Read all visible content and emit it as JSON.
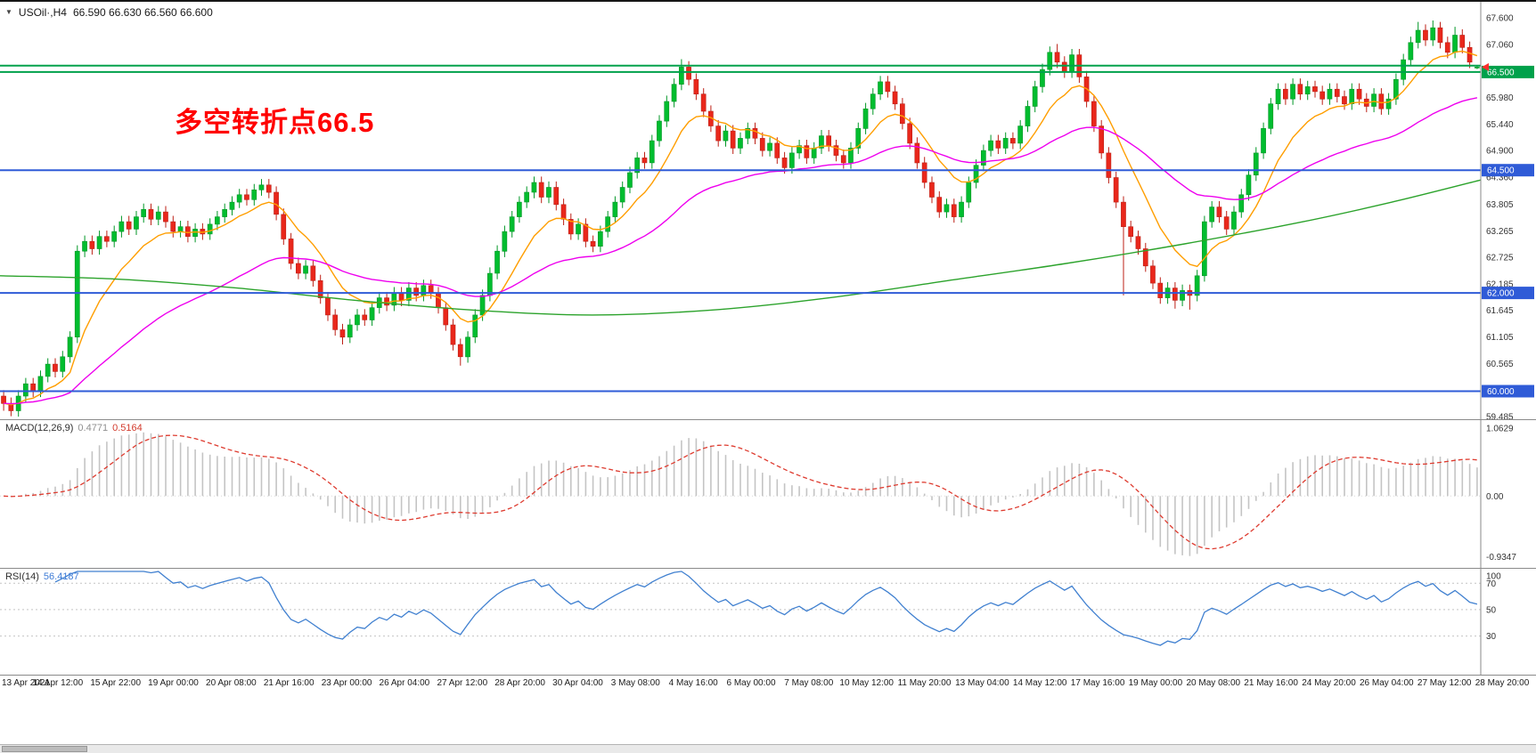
{
  "header": {
    "dropdown_glyph": "▼",
    "symbol": "USOil·,H4",
    "ohlc": "66.590 66.630 66.560 66.600",
    "open": "66.590",
    "high": "66.630",
    "low": "66.560",
    "close": "66.600"
  },
  "annotation": {
    "text": "多空转折点66.5",
    "color": "#FF0000"
  },
  "macd": {
    "label": "MACD(12,26,9)",
    "value_main": "0.4771",
    "value_signal": "0.5164",
    "ticks": [
      "1.0629",
      "0.00",
      "-0.9347"
    ],
    "range": [
      -1.12,
      1.17
    ]
  },
  "rsi": {
    "label": "RSI(14)",
    "value": "56.4187",
    "ticks": [
      "100",
      "70",
      "50",
      "30"
    ],
    "levels": [
      70,
      50,
      30
    ],
    "range": [
      0,
      81
    ]
  },
  "main_axis": {
    "ticks": [
      "67.600",
      "67.060",
      "66.520",
      "65.980",
      "65.440",
      "64.900",
      "64.360",
      "63.805",
      "63.265",
      "62.725",
      "62.185",
      "61.645",
      "61.105",
      "60.565",
      "60.025",
      "59.485"
    ]
  },
  "price_marker": {
    "price": 66.6,
    "color": "#FF2D2D"
  },
  "time_axis": {
    "labels": [
      "13 Apr 2021",
      "14 Apr 12:00",
      "15 Apr 22:00",
      "19 Apr 00:00",
      "20 Apr 08:00",
      "21 Apr 16:00",
      "23 Apr 00:00",
      "26 Apr 04:00",
      "27 Apr 12:00",
      "28 Apr 20:00",
      "30 Apr 04:00",
      "3 May 08:00",
      "4 May 16:00",
      "6 May 00:00",
      "7 May 08:00",
      "10 May 12:00",
      "11 May 20:00",
      "13 May 04:00",
      "14 May 12:00",
      "17 May 16:00",
      "19 May 00:00",
      "20 May 08:00",
      "21 May 16:00",
      "24 May 20:00",
      "26 May 04:00",
      "27 May 12:00",
      "28 May 20:00"
    ]
  },
  "chart_data": {
    "type": "candlestick",
    "symbol": "USOil",
    "timeframe": "H4",
    "title": "USOil,H4",
    "last_ohlc": {
      "open": 66.59,
      "high": 66.63,
      "low": 66.56,
      "close": 66.6
    },
    "price_range": [
      59.41,
      67.93
    ],
    "x_start_label": "13 Apr 2021",
    "x_end_label": "28 May 20:00",
    "indicators": [
      {
        "name": "MACD",
        "params": [
          12,
          26,
          9
        ],
        "values": [
          0.4771,
          0.5164
        ]
      },
      {
        "name": "RSI",
        "params": [
          14
        ],
        "value": 56.4187
      }
    ],
    "hlines": [
      {
        "price": 66.63,
        "color": "#00A14B",
        "width": 2,
        "badge": null
      },
      {
        "price": 66.5,
        "color": "#00A14B",
        "width": 2,
        "badge": "66.500"
      },
      {
        "price": 64.5,
        "color": "#2F5BD7",
        "width": 2,
        "badge": "64.500"
      },
      {
        "price": 62.0,
        "color": "#2F5BD7",
        "width": 2,
        "badge": "62.000"
      },
      {
        "price": 60.0,
        "color": "#2F5BD7",
        "width": 2,
        "badge": "60.000"
      }
    ],
    "moving_averages": {
      "fast": {
        "period": 10,
        "color": "#FF9E00"
      },
      "mid": {
        "period": 40,
        "color": "#EE00EE"
      },
      "slow": {
        "color": "#2CA32C",
        "points": [
          [
            0,
            62.35
          ],
          [
            0.08,
            62.28
          ],
          [
            0.16,
            62.1
          ],
          [
            0.24,
            61.85
          ],
          [
            0.32,
            61.65
          ],
          [
            0.4,
            61.55
          ],
          [
            0.48,
            61.65
          ],
          [
            0.56,
            61.9
          ],
          [
            0.64,
            62.25
          ],
          [
            0.72,
            62.6
          ],
          [
            0.8,
            63.0
          ],
          [
            0.88,
            63.45
          ],
          [
            0.94,
            63.85
          ],
          [
            1,
            64.3
          ]
        ]
      }
    },
    "colors": {
      "up": "#00BD2F",
      "up_stroke": "#009625",
      "down": "#E9271B",
      "down_stroke": "#BC1F15",
      "macd_hist": "#C4C4C4",
      "macd_signal": "#DE3B2F",
      "rsi_line": "#4080D0",
      "level_line": "#C4C4C4",
      "axis_text": "#333333",
      "border": "#8A8A8A"
    },
    "candles": [
      [
        59.9,
        60.02,
        59.6,
        59.75
      ],
      [
        59.75,
        59.87,
        59.49,
        59.6
      ],
      [
        59.6,
        60.02,
        59.48,
        59.9
      ],
      [
        59.9,
        60.27,
        59.78,
        60.15
      ],
      [
        60.15,
        60.27,
        59.88,
        60.0
      ],
      [
        60.0,
        60.42,
        59.88,
        60.3
      ],
      [
        60.3,
        60.67,
        60.18,
        60.55
      ],
      [
        60.55,
        60.67,
        60.28,
        60.4
      ],
      [
        60.4,
        60.82,
        60.28,
        60.7
      ],
      [
        60.7,
        61.22,
        60.58,
        61.1
      ],
      [
        61.1,
        62.97,
        60.98,
        62.85
      ],
      [
        62.85,
        63.17,
        62.73,
        63.05
      ],
      [
        63.05,
        63.17,
        62.78,
        62.9
      ],
      [
        62.9,
        63.27,
        62.78,
        63.15
      ],
      [
        63.15,
        63.27,
        62.93,
        63.05
      ],
      [
        63.05,
        63.37,
        62.93,
        63.25
      ],
      [
        63.25,
        63.57,
        63.13,
        63.45
      ],
      [
        63.45,
        63.57,
        63.18,
        63.3
      ],
      [
        63.3,
        63.67,
        63.18,
        63.55
      ],
      [
        63.55,
        63.82,
        63.43,
        63.7
      ],
      [
        63.7,
        63.82,
        63.38,
        63.5
      ],
      [
        63.5,
        63.77,
        63.38,
        63.65
      ],
      [
        63.65,
        63.77,
        63.33,
        63.45
      ],
      [
        63.45,
        63.57,
        63.13,
        63.25
      ],
      [
        63.25,
        63.47,
        63.13,
        63.35
      ],
      [
        63.35,
        63.47,
        63.03,
        63.15
      ],
      [
        63.15,
        63.42,
        63.03,
        63.3
      ],
      [
        63.3,
        63.42,
        63.08,
        63.2
      ],
      [
        63.2,
        63.52,
        63.08,
        63.4
      ],
      [
        63.4,
        63.67,
        63.28,
        63.55
      ],
      [
        63.55,
        63.82,
        63.43,
        63.7
      ],
      [
        63.7,
        63.97,
        63.58,
        63.85
      ],
      [
        63.85,
        64.12,
        63.73,
        64.0
      ],
      [
        64.0,
        64.12,
        63.78,
        63.9
      ],
      [
        63.9,
        64.22,
        63.78,
        64.1
      ],
      [
        64.1,
        64.32,
        63.98,
        64.2
      ],
      [
        64.2,
        64.32,
        63.93,
        64.05
      ],
      [
        64.05,
        64.17,
        63.48,
        63.6
      ],
      [
        63.6,
        63.72,
        62.98,
        63.1
      ],
      [
        63.1,
        63.22,
        62.48,
        62.6
      ],
      [
        62.6,
        62.72,
        62.28,
        62.4
      ],
      [
        62.4,
        62.67,
        62.28,
        62.55
      ],
      [
        62.55,
        62.67,
        62.13,
        62.25
      ],
      [
        62.25,
        62.37,
        61.78,
        61.9
      ],
      [
        61.9,
        62.02,
        61.43,
        61.55
      ],
      [
        61.55,
        61.67,
        61.13,
        61.25
      ],
      [
        61.25,
        61.37,
        60.95,
        61.1
      ],
      [
        61.1,
        61.47,
        60.98,
        61.35
      ],
      [
        61.35,
        61.67,
        61.23,
        61.55
      ],
      [
        61.55,
        61.67,
        61.33,
        61.45
      ],
      [
        61.45,
        61.82,
        61.33,
        61.7
      ],
      [
        61.7,
        62.02,
        61.58,
        61.9
      ],
      [
        61.9,
        62.02,
        61.63,
        61.75
      ],
      [
        61.75,
        62.12,
        61.63,
        62.0
      ],
      [
        62.0,
        62.12,
        61.73,
        61.85
      ],
      [
        61.85,
        62.22,
        61.73,
        62.1
      ],
      [
        62.1,
        62.22,
        61.83,
        61.95
      ],
      [
        61.95,
        62.27,
        61.83,
        62.15
      ],
      [
        62.15,
        62.27,
        61.88,
        62.0
      ],
      [
        62.0,
        62.12,
        61.58,
        61.7
      ],
      [
        61.7,
        61.82,
        61.23,
        61.35
      ],
      [
        61.35,
        61.47,
        60.83,
        60.95
      ],
      [
        60.95,
        61.07,
        60.52,
        60.7
      ],
      [
        60.7,
        61.22,
        60.58,
        61.1
      ],
      [
        61.1,
        61.67,
        60.98,
        61.55
      ],
      [
        61.55,
        62.07,
        61.43,
        61.95
      ],
      [
        61.95,
        62.52,
        61.83,
        62.4
      ],
      [
        62.4,
        62.97,
        62.28,
        62.85
      ],
      [
        62.85,
        63.37,
        62.73,
        63.25
      ],
      [
        63.25,
        63.67,
        63.13,
        63.55
      ],
      [
        63.55,
        63.97,
        63.43,
        63.85
      ],
      [
        63.85,
        64.17,
        63.73,
        64.05
      ],
      [
        64.05,
        64.37,
        63.93,
        64.25
      ],
      [
        64.25,
        64.37,
        63.83,
        63.95
      ],
      [
        63.95,
        64.27,
        63.83,
        64.15
      ],
      [
        64.15,
        64.27,
        63.68,
        63.8
      ],
      [
        63.8,
        63.92,
        63.38,
        63.5
      ],
      [
        63.5,
        63.62,
        63.08,
        63.2
      ],
      [
        63.2,
        63.52,
        63.08,
        63.4
      ],
      [
        63.4,
        63.52,
        62.93,
        63.05
      ],
      [
        63.05,
        63.17,
        62.83,
        62.95
      ],
      [
        62.95,
        63.37,
        62.83,
        63.25
      ],
      [
        63.25,
        63.67,
        63.13,
        63.55
      ],
      [
        63.55,
        63.97,
        63.43,
        63.85
      ],
      [
        63.85,
        64.27,
        63.73,
        64.15
      ],
      [
        64.15,
        64.57,
        64.03,
        64.45
      ],
      [
        64.45,
        64.87,
        64.33,
        64.75
      ],
      [
        64.75,
        64.87,
        64.53,
        64.65
      ],
      [
        64.65,
        65.22,
        64.53,
        65.1
      ],
      [
        65.1,
        65.62,
        64.98,
        65.5
      ],
      [
        65.5,
        66.02,
        65.38,
        65.9
      ],
      [
        65.9,
        66.37,
        65.78,
        66.25
      ],
      [
        66.25,
        66.76,
        66.13,
        66.6
      ],
      [
        66.6,
        66.72,
        66.23,
        66.35
      ],
      [
        66.35,
        66.47,
        65.93,
        66.05
      ],
      [
        66.05,
        66.17,
        65.58,
        65.7
      ],
      [
        65.7,
        65.82,
        65.28,
        65.4
      ],
      [
        65.4,
        65.52,
        64.98,
        65.1
      ],
      [
        65.1,
        65.42,
        64.98,
        65.3
      ],
      [
        65.3,
        65.42,
        64.83,
        64.95
      ],
      [
        64.95,
        65.27,
        64.83,
        65.15
      ],
      [
        65.15,
        65.47,
        65.03,
        65.35
      ],
      [
        65.35,
        65.47,
        65.03,
        65.15
      ],
      [
        65.15,
        65.27,
        64.78,
        64.9
      ],
      [
        64.9,
        65.17,
        64.78,
        65.05
      ],
      [
        65.05,
        65.17,
        64.63,
        64.75
      ],
      [
        64.75,
        64.87,
        64.43,
        64.55
      ],
      [
        64.55,
        64.97,
        64.43,
        64.85
      ],
      [
        64.85,
        65.12,
        64.73,
        65.0
      ],
      [
        65.0,
        65.12,
        64.63,
        64.75
      ],
      [
        64.75,
        65.07,
        64.63,
        64.95
      ],
      [
        64.95,
        65.32,
        64.83,
        65.2
      ],
      [
        65.2,
        65.32,
        64.88,
        65.0
      ],
      [
        65.0,
        65.12,
        64.68,
        64.8
      ],
      [
        64.8,
        64.92,
        64.53,
        64.65
      ],
      [
        64.65,
        65.07,
        64.53,
        64.95
      ],
      [
        64.95,
        65.47,
        64.83,
        65.35
      ],
      [
        65.35,
        65.87,
        65.23,
        65.75
      ],
      [
        65.75,
        66.17,
        65.63,
        66.05
      ],
      [
        66.05,
        66.42,
        65.93,
        66.3
      ],
      [
        66.3,
        66.42,
        65.98,
        66.1
      ],
      [
        66.1,
        66.22,
        65.73,
        65.85
      ],
      [
        65.85,
        65.97,
        65.33,
        65.45
      ],
      [
        65.45,
        65.57,
        64.93,
        65.05
      ],
      [
        65.05,
        65.17,
        64.53,
        64.65
      ],
      [
        64.65,
        64.77,
        64.13,
        64.25
      ],
      [
        64.25,
        64.37,
        63.83,
        63.95
      ],
      [
        63.95,
        64.07,
        63.53,
        63.65
      ],
      [
        63.65,
        63.92,
        63.53,
        63.8
      ],
      [
        63.8,
        63.92,
        63.43,
        63.55
      ],
      [
        63.55,
        63.97,
        63.43,
        63.85
      ],
      [
        63.85,
        64.37,
        63.73,
        64.25
      ],
      [
        64.25,
        64.72,
        64.13,
        64.6
      ],
      [
        64.6,
        65.02,
        64.48,
        64.9
      ],
      [
        64.9,
        65.22,
        64.78,
        65.1
      ],
      [
        65.1,
        65.22,
        64.83,
        64.95
      ],
      [
        64.95,
        65.27,
        64.83,
        65.15
      ],
      [
        65.15,
        65.27,
        64.93,
        65.05
      ],
      [
        65.05,
        65.52,
        64.93,
        65.4
      ],
      [
        65.4,
        65.92,
        65.28,
        65.8
      ],
      [
        65.8,
        66.32,
        65.68,
        66.2
      ],
      [
        66.2,
        66.67,
        66.08,
        66.55
      ],
      [
        66.55,
        67.02,
        66.43,
        66.9
      ],
      [
        66.9,
        67.07,
        66.58,
        66.7
      ],
      [
        66.7,
        66.82,
        66.38,
        66.5
      ],
      [
        66.5,
        66.97,
        66.38,
        66.85
      ],
      [
        66.85,
        66.97,
        66.28,
        66.4
      ],
      [
        66.4,
        66.52,
        65.78,
        65.9
      ],
      [
        65.9,
        66.02,
        65.28,
        65.4
      ],
      [
        65.4,
        65.52,
        64.73,
        64.85
      ],
      [
        64.85,
        64.97,
        64.23,
        64.35
      ],
      [
        64.35,
        64.47,
        63.73,
        63.85
      ],
      [
        63.85,
        63.97,
        61.95,
        63.35
      ],
      [
        63.35,
        63.47,
        63.03,
        63.15
      ],
      [
        63.15,
        63.27,
        62.78,
        62.9
      ],
      [
        62.9,
        63.02,
        62.43,
        62.55
      ],
      [
        62.55,
        62.67,
        62.08,
        62.2
      ],
      [
        62.2,
        62.32,
        61.78,
        61.9
      ],
      [
        61.9,
        62.22,
        61.78,
        62.1
      ],
      [
        62.1,
        62.22,
        61.68,
        61.85
      ],
      [
        61.85,
        62.17,
        61.73,
        62.05
      ],
      [
        62.05,
        62.17,
        61.66,
        61.95
      ],
      [
        61.95,
        62.47,
        61.83,
        62.35
      ],
      [
        62.35,
        63.57,
        62.23,
        63.45
      ],
      [
        63.45,
        63.87,
        63.33,
        63.75
      ],
      [
        63.75,
        63.87,
        63.43,
        63.55
      ],
      [
        63.55,
        63.67,
        63.18,
        63.3
      ],
      [
        63.3,
        63.77,
        63.18,
        63.65
      ],
      [
        63.65,
        64.12,
        63.53,
        64.0
      ],
      [
        64.0,
        64.52,
        63.88,
        64.4
      ],
      [
        64.4,
        64.97,
        64.28,
        64.85
      ],
      [
        64.85,
        65.47,
        64.73,
        65.35
      ],
      [
        65.35,
        65.97,
        65.23,
        65.85
      ],
      [
        65.85,
        66.27,
        65.73,
        66.15
      ],
      [
        66.15,
        66.27,
        65.83,
        65.95
      ],
      [
        65.95,
        66.37,
        65.83,
        66.25
      ],
      [
        66.25,
        66.37,
        65.93,
        66.05
      ],
      [
        66.05,
        66.32,
        65.93,
        66.2
      ],
      [
        66.2,
        66.32,
        65.98,
        66.1
      ],
      [
        66.1,
        66.22,
        65.83,
        65.95
      ],
      [
        65.95,
        66.27,
        65.83,
        66.15
      ],
      [
        66.15,
        66.27,
        65.88,
        66.0
      ],
      [
        66.0,
        66.12,
        65.73,
        65.85
      ],
      [
        65.85,
        66.27,
        65.73,
        66.15
      ],
      [
        66.15,
        66.27,
        65.83,
        65.95
      ],
      [
        65.95,
        66.07,
        65.68,
        65.8
      ],
      [
        65.8,
        66.17,
        65.68,
        66.05
      ],
      [
        66.05,
        66.17,
        65.63,
        65.75
      ],
      [
        65.75,
        66.07,
        65.63,
        65.95
      ],
      [
        65.95,
        66.47,
        65.83,
        66.35
      ],
      [
        66.35,
        66.87,
        66.23,
        66.75
      ],
      [
        66.75,
        67.22,
        66.63,
        67.1
      ],
      [
        67.1,
        67.52,
        66.98,
        67.35
      ],
      [
        67.35,
        67.47,
        67.03,
        67.15
      ],
      [
        67.15,
        67.55,
        67.03,
        67.4
      ],
      [
        67.4,
        67.52,
        66.98,
        67.1
      ],
      [
        67.1,
        67.22,
        66.78,
        66.9
      ],
      [
        66.9,
        67.42,
        66.78,
        67.25
      ],
      [
        67.25,
        67.37,
        66.88,
        67.0
      ],
      [
        67.0,
        67.12,
        66.58,
        66.7
      ],
      [
        66.59,
        66.63,
        66.56,
        66.6
      ]
    ]
  }
}
